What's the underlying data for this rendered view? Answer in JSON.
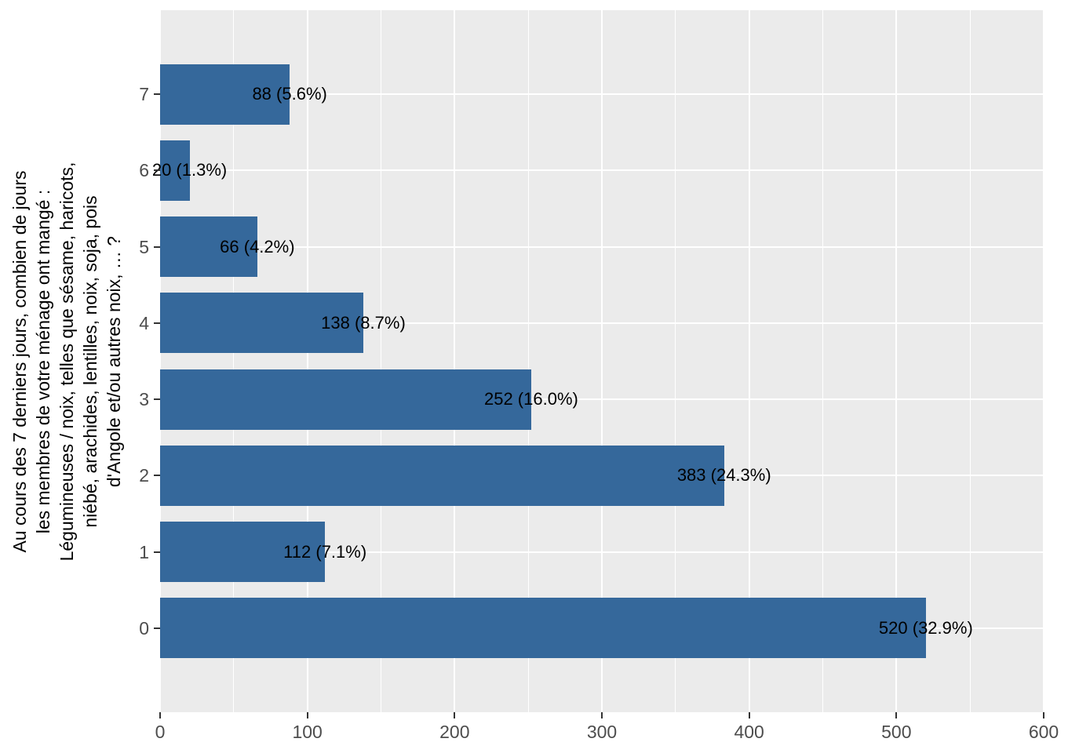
{
  "chart_data": {
    "type": "bar",
    "orientation": "horizontal",
    "title": "",
    "xlabel": "",
    "ylabel": "Au cours des 7 derniers jours, combien de jours\nles membres de votre ménage ont mangé :\nLégumineuses / noix, telles que sésame, haricots,\nniébé, arachides, lentilles, noix, soja, pois\nd'Angole et/ou autres noix, … ?",
    "categories": [
      "7",
      "6",
      "5",
      "4",
      "3",
      "2",
      "1",
      "0"
    ],
    "values": [
      88,
      20,
      66,
      138,
      252,
      383,
      112,
      520
    ],
    "bar_labels": [
      "88 (5.6%)",
      "20 (1.3%)",
      "66 (4.2%)",
      "138 (8.7%)",
      "252 (16.0%)",
      "383 (24.3%)",
      "112 (7.1%)",
      "520 (32.9%)"
    ],
    "x_ticks": [
      0,
      100,
      200,
      300,
      400,
      500,
      600
    ],
    "x_minor_ticks": [
      50,
      150,
      250,
      350,
      450,
      550
    ],
    "xlim": [
      0,
      600
    ],
    "legend": "none",
    "grid": "major-and-minor-white-on-grey",
    "colors": {
      "bar_fill": "#35689B",
      "panel_background": "#EBEBEB",
      "gridline": "#FFFFFF",
      "tick_label": "#4D4D4D",
      "tick_mark": "#333333",
      "bar_label_text": "#000000",
      "axis_title_text": "#000000",
      "figure_background": "#FFFFFF"
    }
  }
}
